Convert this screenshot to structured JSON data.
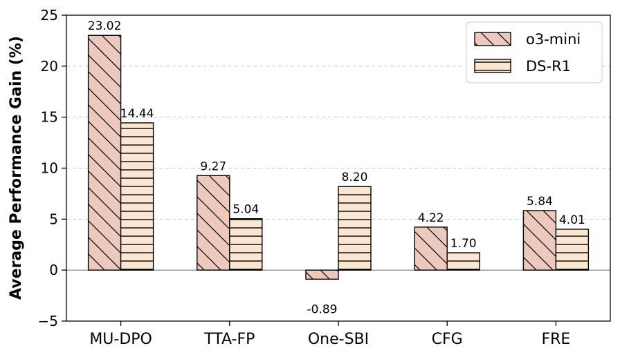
{
  "chart_data": {
    "type": "bar",
    "title": "",
    "xlabel": "",
    "ylabel": "Average Performance Gain (%)",
    "ylim": [
      -5,
      25
    ],
    "yticks": [
      -5,
      0,
      5,
      10,
      15,
      20,
      25
    ],
    "ytick_labels": [
      "−5",
      "0",
      "5",
      "10",
      "15",
      "20",
      "25"
    ],
    "grid": "horizontal dashed",
    "legend_position": "top-right",
    "categories": [
      "MU-DPO",
      "TTA-FP",
      "One-SBI",
      "CFG",
      "FRE"
    ],
    "series": [
      {
        "name": "o3-mini",
        "values": [
          23.02,
          9.27,
          -0.89,
          4.22,
          5.84
        ],
        "labels": [
          "23.02",
          "9.27",
          "-0.89",
          "4.22",
          "5.84"
        ],
        "color": "#ecc8bd",
        "hatch": "backslash"
      },
      {
        "name": "DS-R1",
        "values": [
          14.44,
          5.04,
          8.2,
          1.7,
          4.01
        ],
        "labels": [
          "14.44",
          "5.04",
          "8.20",
          "1.70",
          "4.01"
        ],
        "color": "#fbe6d3",
        "hatch": "horizontal"
      }
    ]
  }
}
